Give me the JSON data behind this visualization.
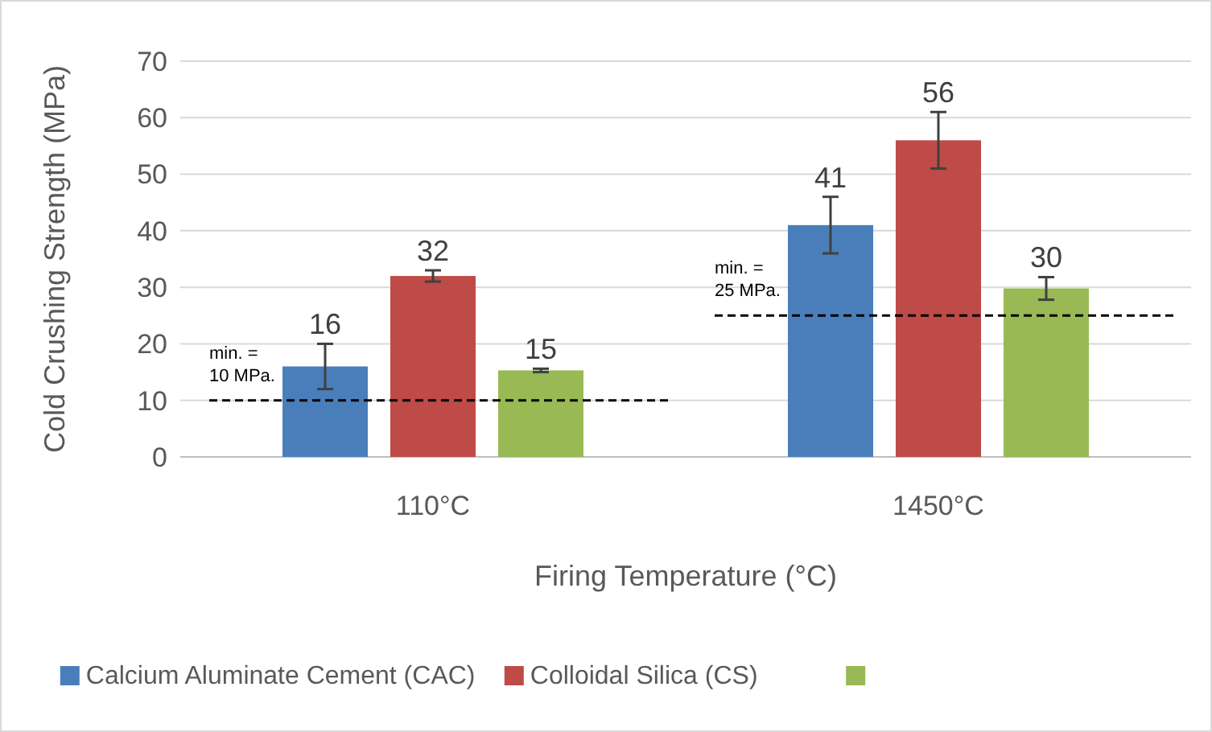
{
  "chart_data": {
    "type": "bar",
    "xlabel": "Firing Temperature (°C)",
    "ylabel": "Cold Crushing Strength (MPa)",
    "categories": [
      "110°C",
      "1450°C"
    ],
    "series": [
      {
        "name": "Calcium Aluminate Cement (CAC)",
        "color": "#4a7ebb",
        "values": [
          16,
          41
        ],
        "errors": [
          4,
          5
        ]
      },
      {
        "name": "Colloidal Silica (CS)",
        "color": "#be4b48",
        "values": [
          32,
          56
        ],
        "errors": [
          1,
          5
        ]
      },
      {
        "color": "#98b954",
        "values": [
          15.3,
          29.8
        ],
        "errors": [
          0.3,
          2
        ]
      }
    ],
    "ylim": [
      0,
      70
    ],
    "yticks": [
      0,
      10,
      20,
      30,
      40,
      50,
      60,
      70
    ],
    "grid": "y",
    "legend": "bottom",
    "value_labels": [
      [
        "16",
        "41"
      ],
      [
        "32",
        "56"
      ],
      [
        "15",
        "30"
      ]
    ],
    "ref_lines": [
      {
        "axis": "y",
        "value": 10,
        "label": "min. = 10 MPa.",
        "line_style": "dashed",
        "color": "#000000"
      },
      {
        "axis": "y",
        "value": 25,
        "label": "min. = 25 MPa.",
        "line_style": "dashed",
        "color": "#000000"
      }
    ]
  }
}
